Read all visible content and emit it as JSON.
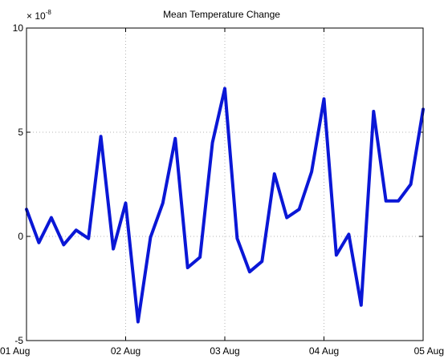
{
  "chart_data": {
    "type": "line",
    "title": "Mean Temperature Change",
    "xlabel": "",
    "ylabel": "",
    "y_exponent_label": {
      "base": "× 10",
      "exponent": "-8"
    },
    "xlim": [
      0,
      4
    ],
    "ylim": [
      -5,
      10
    ],
    "grid": true,
    "x_ticks": [
      {
        "value": 0,
        "label": "01 Aug"
      },
      {
        "value": 1,
        "label": "02 Aug"
      },
      {
        "value": 2,
        "label": "03 Aug"
      },
      {
        "value": 3,
        "label": "04 Aug"
      },
      {
        "value": 4,
        "label": "05 Aug"
      }
    ],
    "y_ticks": [
      {
        "value": -5,
        "label": "-5"
      },
      {
        "value": 0,
        "label": "0"
      },
      {
        "value": 5,
        "label": "5"
      },
      {
        "value": 10,
        "label": "10"
      }
    ],
    "series": [
      {
        "color": "#0a17d6",
        "x": [
          0,
          0.125,
          0.25,
          0.375,
          0.5,
          0.625,
          0.75,
          0.875,
          1.0,
          1.125,
          1.25,
          1.375,
          1.5,
          1.625,
          1.75,
          1.875,
          2.0,
          2.125,
          2.25,
          2.375,
          2.5,
          2.625,
          2.75,
          2.875,
          3.0,
          3.125,
          3.25,
          3.375,
          3.5,
          3.625,
          3.75,
          3.875,
          4.0
        ],
        "y": [
          1.3,
          -0.3,
          0.9,
          -0.4,
          0.3,
          -0.1,
          4.8,
          -0.6,
          1.6,
          -4.1,
          -0.05,
          1.6,
          4.7,
          -1.5,
          -1.0,
          4.5,
          7.1,
          -0.1,
          -1.7,
          -1.2,
          3.0,
          0.9,
          1.3,
          3.1,
          6.6,
          -0.9,
          0.1,
          -3.3,
          6.0,
          1.7,
          1.7,
          2.5,
          6.1
        ]
      }
    ]
  }
}
